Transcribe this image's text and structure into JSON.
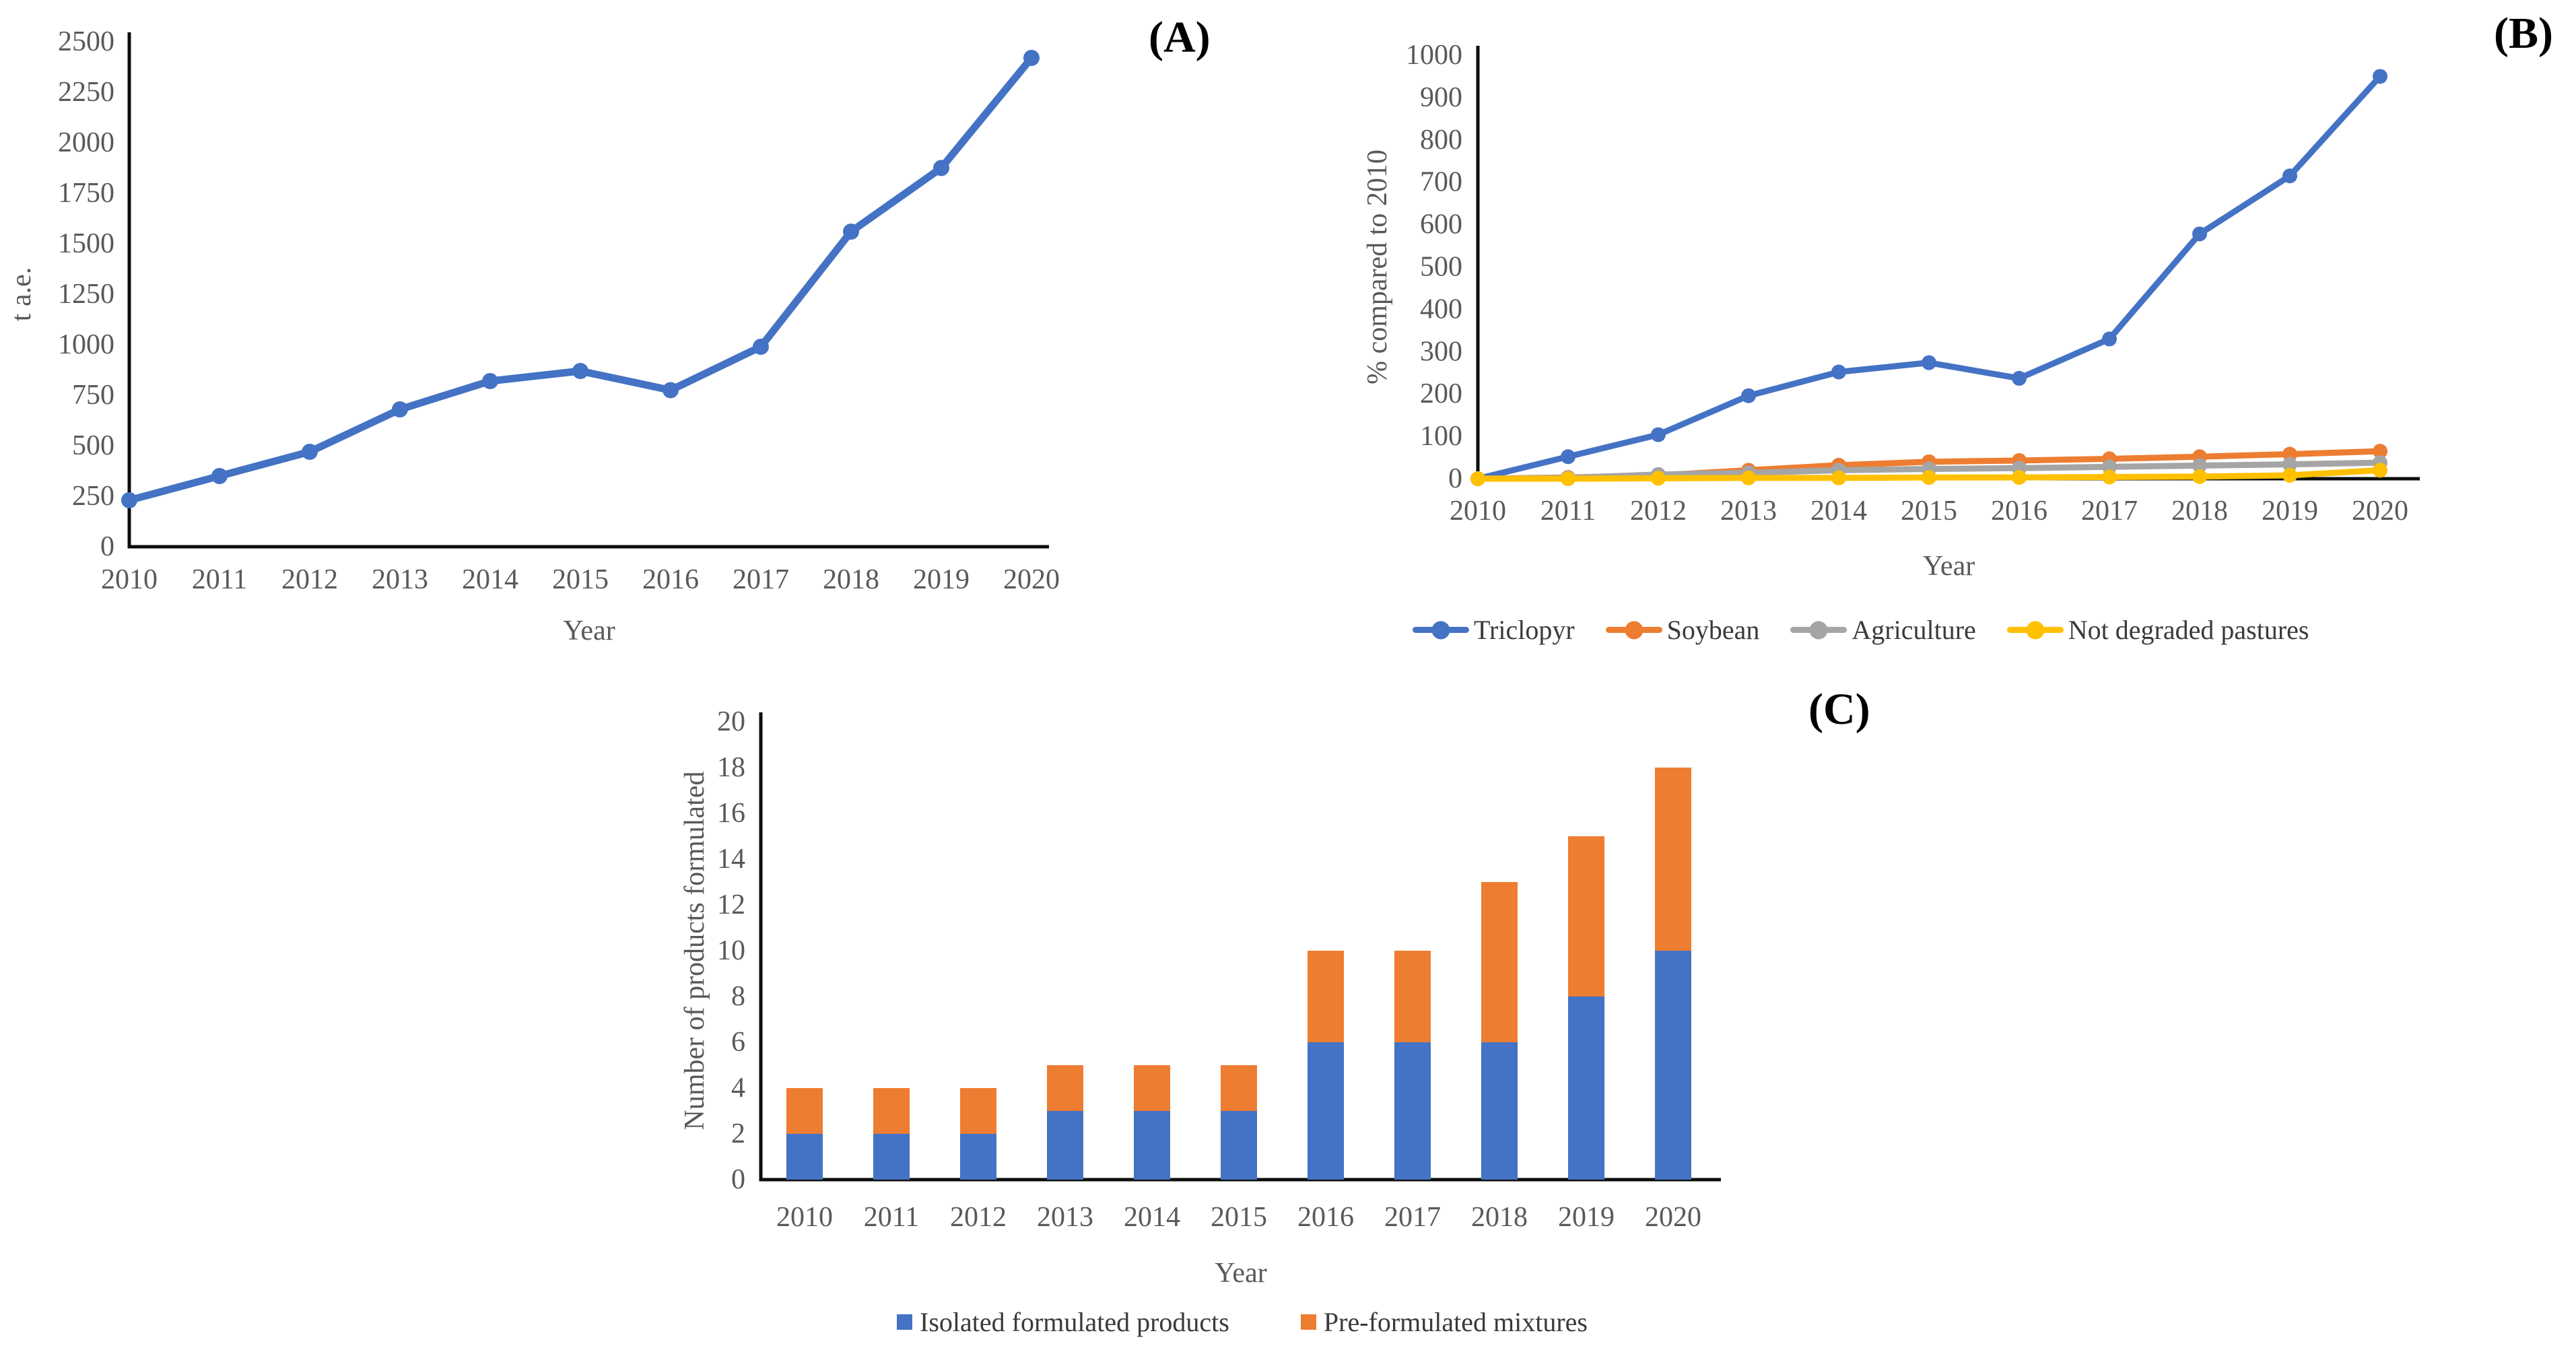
{
  "panels": [
    {
      "id": "A",
      "label": "(A)"
    },
    {
      "id": "B",
      "label": "(B)"
    },
    {
      "id": "C",
      "label": "(C)"
    }
  ],
  "colors": {
    "blue": "#4472C4",
    "orange": "#ED7D31",
    "gray": "#A5A5A5",
    "yellow": "#FFC000",
    "axis_line": "#0d0d0d",
    "tick_text": "#595959",
    "legend_text": "#3a3a3a",
    "panel_label_text": "#000000"
  },
  "chart_data": [
    {
      "id": "A",
      "type": "line",
      "title": "",
      "xlabel": "Year",
      "ylabel": "t a.e.",
      "categories": [
        "2010",
        "2011",
        "2012",
        "2013",
        "2014",
        "2015",
        "2016",
        "2017",
        "2018",
        "2019",
        "2020"
      ],
      "series": [
        {
          "name": "t a.e.",
          "color": "#4472C4",
          "values": [
            230,
            350,
            470,
            680,
            820,
            870,
            775,
            990,
            1560,
            1875,
            2420
          ]
        }
      ],
      "ylim": [
        0,
        2500
      ],
      "yticks": [
        0,
        250,
        500,
        750,
        1000,
        1250,
        1500,
        1750,
        2000,
        2250,
        2500
      ],
      "grid": false,
      "legend_position": "none"
    },
    {
      "id": "B",
      "type": "line",
      "title": "",
      "xlabel": "Year",
      "ylabel": "% compared to 2010",
      "categories": [
        "2010",
        "2011",
        "2012",
        "2013",
        "2014",
        "2015",
        "2016",
        "2017",
        "2018",
        "2019",
        "2020"
      ],
      "series": [
        {
          "name": "Triclopyr",
          "color": "#4472C4",
          "values": [
            0,
            52,
            104,
            196,
            252,
            274,
            237,
            330,
            578,
            715,
            950
          ]
        },
        {
          "name": "Soybean",
          "color": "#ED7D31",
          "values": [
            0,
            3,
            8,
            20,
            32,
            40,
            43,
            47,
            52,
            58,
            65
          ]
        },
        {
          "name": "Agriculture",
          "color": "#A5A5A5",
          "values": [
            0,
            2,
            10,
            14,
            20,
            23,
            25,
            28,
            31,
            34,
            38
          ]
        },
        {
          "name": "Not degraded pastures",
          "color": "#FFC000",
          "values": [
            0,
            0,
            1,
            2,
            2,
            3,
            3,
            4,
            5,
            8,
            20
          ]
        }
      ],
      "ylim": [
        0,
        1000
      ],
      "yticks": [
        0,
        100,
        200,
        300,
        400,
        500,
        600,
        700,
        800,
        900,
        1000
      ],
      "grid": false,
      "legend_position": "bottom"
    },
    {
      "id": "C",
      "type": "stacked-bar",
      "title": "",
      "xlabel": "Year",
      "ylabel": "Number of products formulated",
      "categories": [
        "2010",
        "2011",
        "2012",
        "2013",
        "2014",
        "2015",
        "2016",
        "2017",
        "2018",
        "2019",
        "2020"
      ],
      "series": [
        {
          "name": "Isolated formulated products",
          "color": "#4472C4",
          "values": [
            2,
            2,
            2,
            3,
            3,
            3,
            6,
            6,
            6,
            8,
            10
          ]
        },
        {
          "name": "Pre-formulated mixtures",
          "color": "#ED7D31",
          "values": [
            2,
            2,
            2,
            2,
            2,
            2,
            4,
            4,
            7,
            7,
            8
          ]
        }
      ],
      "ylim": [
        0,
        20
      ],
      "yticks": [
        0,
        2,
        4,
        6,
        8,
        10,
        12,
        14,
        16,
        18,
        20
      ],
      "grid": false,
      "legend_position": "bottom"
    }
  ]
}
